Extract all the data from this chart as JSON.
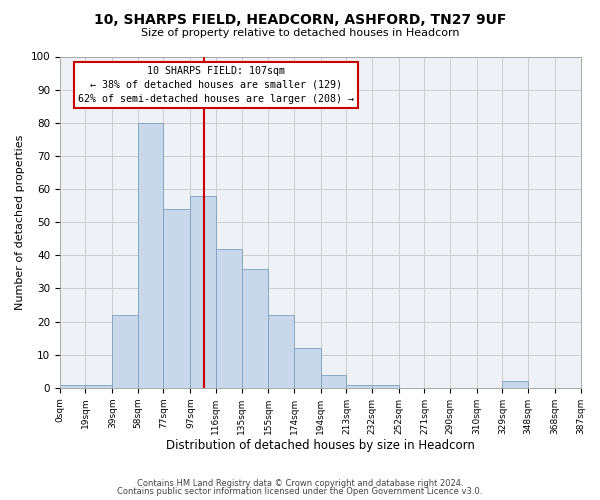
{
  "title": "10, SHARPS FIELD, HEADCORN, ASHFORD, TN27 9UF",
  "subtitle": "Size of property relative to detached houses in Headcorn",
  "xlabel": "Distribution of detached houses by size in Headcorn",
  "ylabel": "Number of detached properties",
  "bar_edges": [
    0,
    19,
    39,
    58,
    77,
    97,
    116,
    135,
    155,
    174,
    194,
    213,
    232,
    252,
    271,
    290,
    310,
    329,
    348,
    368,
    387
  ],
  "bar_heights": [
    1,
    1,
    22,
    80,
    54,
    58,
    42,
    36,
    22,
    12,
    4,
    1,
    1,
    0,
    0,
    0,
    0,
    2,
    0,
    0
  ],
  "bar_color": "#c8d8ea",
  "bar_edgecolor": "#7aA0C0",
  "vline_x": 107,
  "vline_color": "#cc0000",
  "ann_text_line1": "10 SHARPS FIELD: 107sqm",
  "ann_text_line2": "← 38% of detached houses are smaller (129)",
  "ann_text_line3": "62% of semi-detached houses are larger (208) →",
  "annotation_box_edgecolor": "#cc0000",
  "annotation_box_facecolor": "#ffffff",
  "ylim": [
    0,
    100
  ],
  "yticks": [
    0,
    10,
    20,
    30,
    40,
    50,
    60,
    70,
    80,
    90,
    100
  ],
  "tick_labels": [
    "0sqm",
    "19sqm",
    "39sqm",
    "58sqm",
    "77sqm",
    "97sqm",
    "116sqm",
    "135sqm",
    "155sqm",
    "174sqm",
    "194sqm",
    "213sqm",
    "232sqm",
    "252sqm",
    "271sqm",
    "290sqm",
    "310sqm",
    "329sqm",
    "348sqm",
    "368sqm",
    "387sqm"
  ],
  "grid_color": "#cccccc",
  "bg_color": "#eef2f6",
  "footer_line1": "Contains HM Land Registry data © Crown copyright and database right 2024.",
  "footer_line2": "Contains public sector information licensed under the Open Government Licence v3.0."
}
